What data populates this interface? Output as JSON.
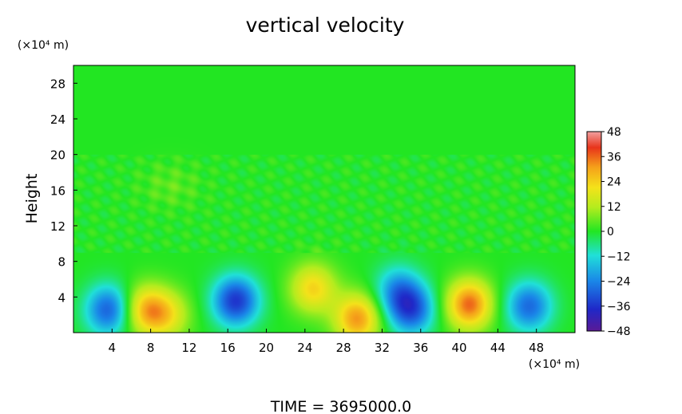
{
  "chart_data": {
    "type": "heatmap",
    "title": "vertical velocity",
    "ylabel": "Height",
    "y_unit": "(×10⁴ m)",
    "x_unit": "(×10⁴ m)",
    "footer": "TIME  =  3695000.0",
    "xlim": [
      0,
      52
    ],
    "ylim": [
      0,
      30
    ],
    "x_ticks": [
      4,
      8,
      12,
      16,
      20,
      24,
      28,
      32,
      36,
      40,
      44,
      48
    ],
    "x_tick_labels": [
      "4",
      "8",
      "12",
      "16",
      "20",
      "24",
      "28",
      "32",
      "36",
      "40",
      "44",
      "48"
    ],
    "y_ticks": [
      4,
      8,
      12,
      16,
      20,
      24,
      28
    ],
    "y_tick_labels": [
      "4",
      "8",
      "12",
      "16",
      "20",
      "24",
      "28"
    ],
    "colorbar": {
      "range": [
        -48,
        48
      ],
      "ticks": [
        48,
        36,
        24,
        12,
        0,
        -12,
        -24,
        -36,
        -48
      ],
      "tick_labels": [
        "48",
        "36",
        "24",
        "12",
        "0",
        "−12",
        "−24",
        "−36",
        "−48"
      ]
    },
    "background_value": 0,
    "features": [
      {
        "x": 3.6,
        "y": 2.6,
        "peak": -30
      },
      {
        "x": 7.4,
        "y": 2.6,
        "peak": 26
      },
      {
        "x": 9.7,
        "y": 2.0,
        "peak": 18
      },
      {
        "x": 16.8,
        "y": 3.6,
        "peak": -36
      },
      {
        "x": 24.8,
        "y": 5.0,
        "peak": 24
      },
      {
        "x": 29.4,
        "y": 1.6,
        "peak": 32
      },
      {
        "x": 33.6,
        "y": 4.8,
        "peak": -20
      },
      {
        "x": 35.0,
        "y": 2.6,
        "peak": -30
      },
      {
        "x": 41.0,
        "y": 3.2,
        "peak": 36
      },
      {
        "x": 47.2,
        "y": 3.0,
        "peak": -28
      },
      {
        "x": 10.0,
        "y": 16.5,
        "peak": 5
      }
    ]
  }
}
